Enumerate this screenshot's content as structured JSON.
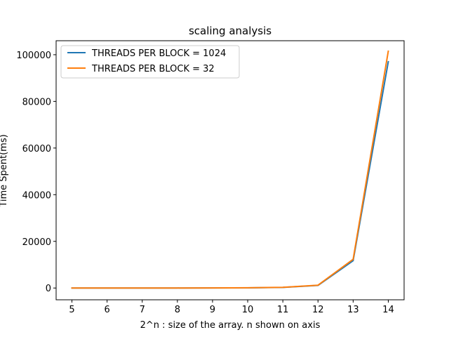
{
  "chart_data": {
    "type": "line",
    "title": "scaling analysis",
    "xlabel": "2^n : size of the array. n shown on axis",
    "ylabel": "Time Spent(ms)",
    "x": [
      5,
      6,
      7,
      8,
      9,
      10,
      11,
      12,
      13,
      14
    ],
    "xlim": [
      4.55,
      14.45
    ],
    "ylim": [
      -5050,
      106000
    ],
    "xticks": [
      "5",
      "6",
      "7",
      "8",
      "9",
      "10",
      "11",
      "12",
      "13",
      "14"
    ],
    "yticks": [
      0,
      20000,
      40000,
      60000,
      80000,
      100000
    ],
    "ytick_labels": [
      "0",
      "20000",
      "40000",
      "60000",
      "80000",
      "100000"
    ],
    "grid": false,
    "legend_position": "upper-left",
    "series": [
      {
        "name": "THREADS PER BLOCK = 1024",
        "color": "#1f77b4",
        "values": [
          1,
          2,
          4,
          10,
          30,
          80,
          250,
          1100,
          11700,
          97000
        ]
      },
      {
        "name": "THREADS PER BLOCK = 32",
        "color": "#ff7f0e",
        "values": [
          1,
          2,
          4,
          10,
          30,
          90,
          300,
          1200,
          12300,
          101500
        ]
      }
    ]
  }
}
